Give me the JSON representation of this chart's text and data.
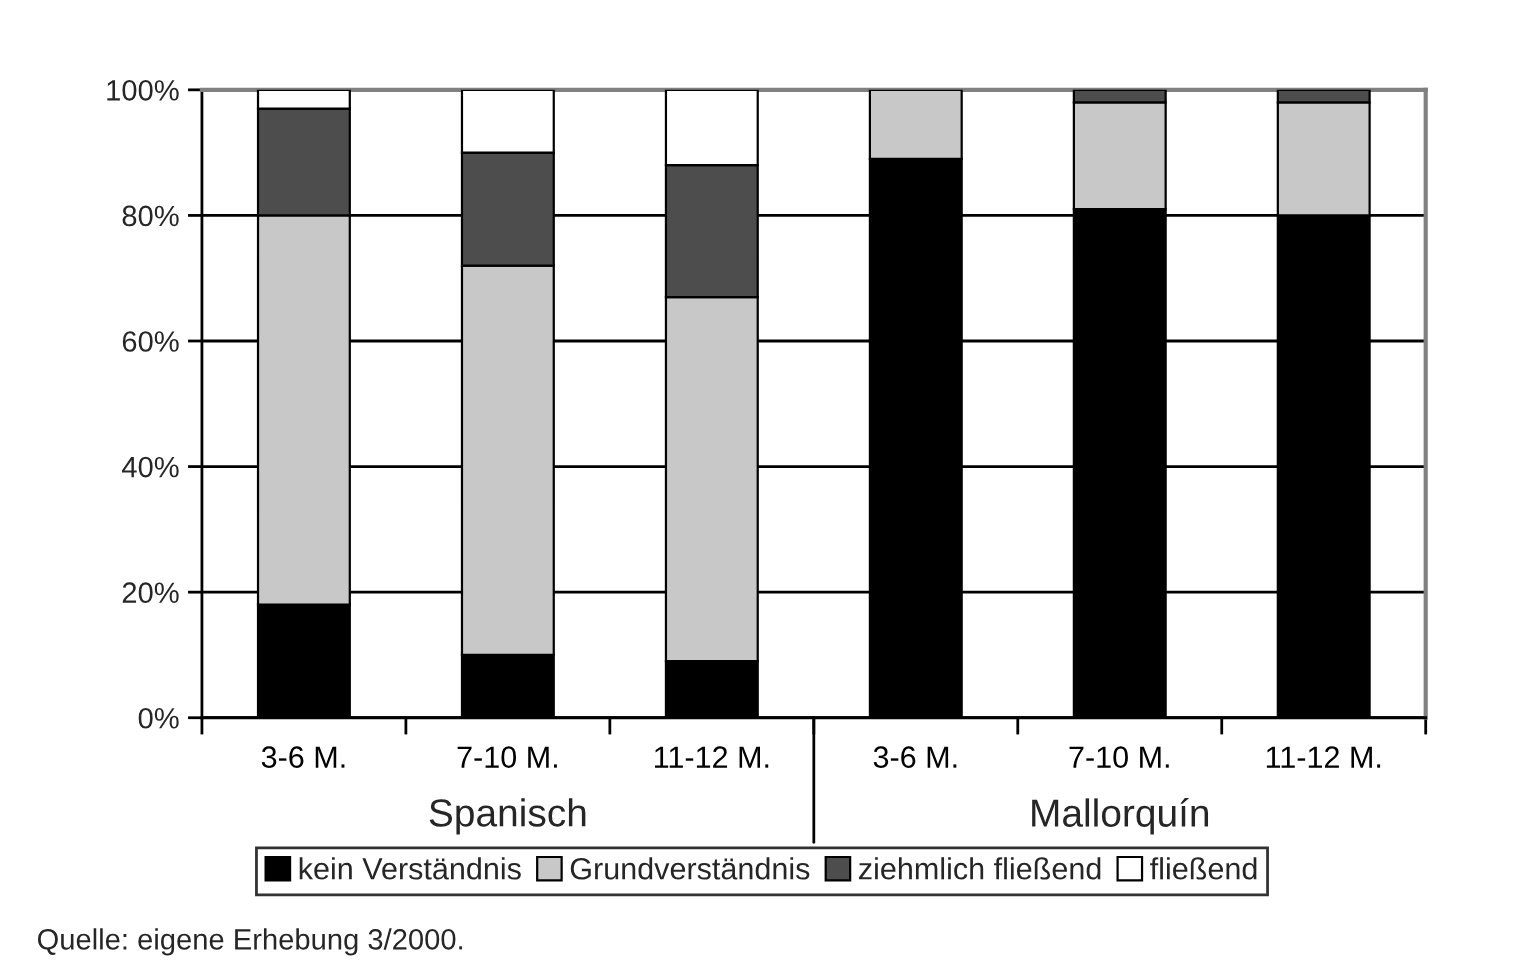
{
  "chart_data": {
    "type": "bar",
    "stacked": true,
    "categories": [
      "3-6 M.",
      "7-10 M.",
      "11-12 M.",
      "3-6 M.",
      "7-10 M.",
      "11-12 M."
    ],
    "series": [
      {
        "name": "kein Verständnis",
        "color": "#000000",
        "values": [
          18,
          10,
          9,
          89,
          81,
          80
        ]
      },
      {
        "name": "Grundverständnis",
        "color": "#c8c8c8",
        "values": [
          62,
          62,
          58,
          11,
          17,
          18
        ]
      },
      {
        "name": "ziehmlich fließend",
        "color": "#4d4d4d",
        "values": [
          17,
          18,
          21,
          0,
          2,
          2
        ]
      },
      {
        "name": "fließend",
        "color": "#ffffff",
        "values": [
          3,
          10,
          12,
          0,
          0,
          0
        ]
      }
    ],
    "ylim": [
      0,
      100
    ],
    "yticks": [
      {
        "value": 0,
        "label": "0%"
      },
      {
        "value": 20,
        "label": "20%"
      },
      {
        "value": 40,
        "label": "40%"
      },
      {
        "value": 60,
        "label": "60%"
      },
      {
        "value": 80,
        "label": "80%"
      },
      {
        "value": 100,
        "label": "100%"
      }
    ],
    "grid": "y",
    "legend": "bottom",
    "annotations": [
      "Spanisch",
      "Mallorquín",
      "Quelle: eigene Erhebung 3/2000."
    ]
  }
}
